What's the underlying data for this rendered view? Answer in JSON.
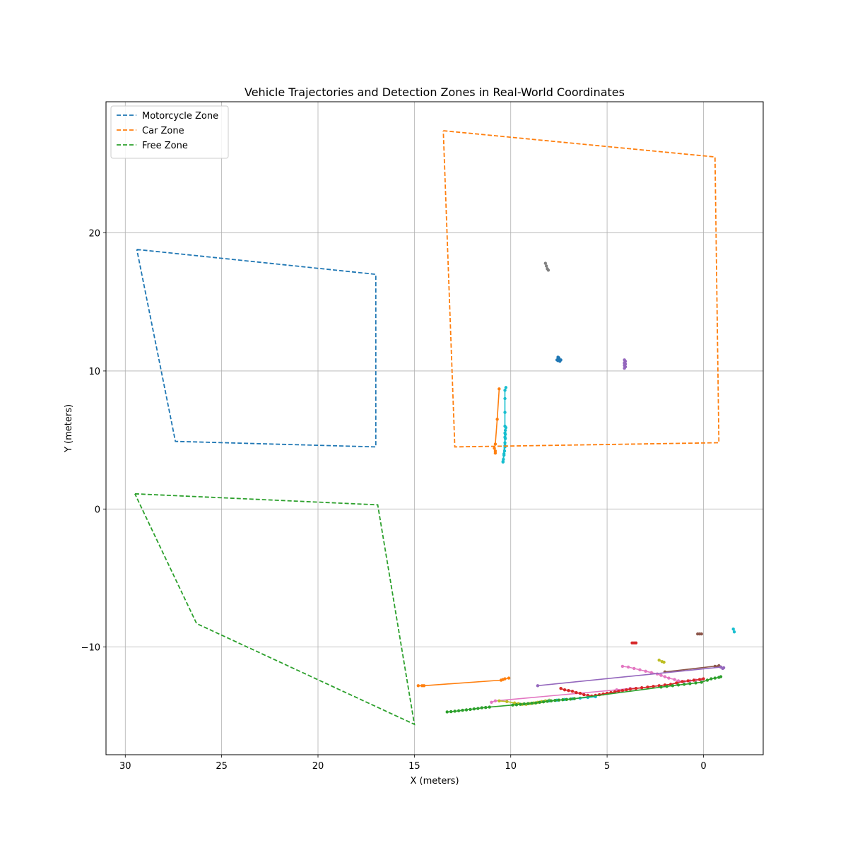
{
  "chart_data": {
    "type": "line",
    "title": "Vehicle Trajectories and Detection Zones in Real-World Coordinates",
    "xlabel": "X (meters)",
    "ylabel": "Y (meters)",
    "x_inverted": true,
    "xlim": [
      31,
      -3.1
    ],
    "ylim": [
      -17.8,
      29.5
    ],
    "xticks": [
      30,
      25,
      20,
      15,
      10,
      5,
      0
    ],
    "yticks": [
      20,
      10,
      0,
      -10
    ],
    "xtick_labels": [
      "30",
      "25",
      "20",
      "15",
      "10",
      "5",
      "0"
    ],
    "ytick_labels": [
      "20",
      "10",
      "0",
      "−10"
    ],
    "grid": true,
    "legend_position": "upper-left",
    "zones": [
      {
        "name": "Motorcycle Zone",
        "color": "#1f77b4",
        "style": "dashed",
        "points": [
          [
            29.4,
            18.8
          ],
          [
            17.0,
            17.0
          ],
          [
            17.0,
            4.5
          ],
          [
            27.4,
            4.9
          ],
          [
            29.4,
            18.8
          ]
        ]
      },
      {
        "name": "Car Zone",
        "color": "#ff7f0e",
        "style": "dashed",
        "points": [
          [
            13.5,
            27.4
          ],
          [
            -0.6,
            25.5
          ],
          [
            -0.8,
            4.8
          ],
          [
            12.9,
            4.5
          ],
          [
            13.5,
            27.4
          ]
        ]
      },
      {
        "name": "Free Zone",
        "color": "#2ca02c",
        "style": "dashed",
        "points": [
          [
            29.5,
            1.1
          ],
          [
            16.9,
            0.3
          ],
          [
            15.0,
            -15.6
          ],
          [
            26.3,
            -8.3
          ],
          [
            29.5,
            1.1
          ]
        ]
      }
    ],
    "trajectories": [
      {
        "color": "#7f7f7f",
        "points": [
          [
            8.2,
            17.8
          ],
          [
            8.15,
            17.6
          ],
          [
            8.1,
            17.4
          ],
          [
            8.05,
            17.3
          ]
        ]
      },
      {
        "color": "#1f77b4",
        "points": [
          [
            7.6,
            10.8
          ],
          [
            7.55,
            11.0
          ],
          [
            7.5,
            10.9
          ],
          [
            7.45,
            10.7
          ],
          [
            7.4,
            10.8
          ],
          [
            7.55,
            10.75
          ],
          [
            7.5,
            10.95
          ]
        ]
      },
      {
        "color": "#9467bd",
        "points": [
          [
            4.1,
            10.8
          ],
          [
            4.05,
            10.7
          ],
          [
            4.1,
            10.6
          ],
          [
            4.05,
            10.5
          ],
          [
            4.1,
            10.4
          ],
          [
            4.05,
            10.3
          ],
          [
            4.1,
            10.2
          ],
          [
            4.1,
            10.55
          ]
        ]
      },
      {
        "color": "#ff7f0e",
        "points": [
          [
            10.6,
            8.7
          ],
          [
            10.7,
            6.5
          ],
          [
            10.8,
            4.7
          ],
          [
            10.85,
            4.4
          ],
          [
            10.8,
            4.2
          ],
          [
            10.8,
            4.05
          ]
        ]
      },
      {
        "color": "#17becf",
        "points": [
          [
            10.25,
            8.8
          ],
          [
            10.3,
            8.6
          ],
          [
            10.3,
            8.0
          ],
          [
            10.3,
            7.0
          ],
          [
            10.3,
            6.0
          ],
          [
            10.28,
            5.7
          ],
          [
            10.28,
            5.4
          ],
          [
            10.28,
            5.1
          ],
          [
            10.3,
            4.8
          ],
          [
            10.3,
            4.5
          ],
          [
            10.32,
            4.2
          ],
          [
            10.35,
            3.9
          ],
          [
            10.38,
            3.6
          ],
          [
            10.4,
            3.4
          ],
          [
            10.25,
            5.9
          ],
          [
            10.3,
            5.5
          ],
          [
            10.3,
            5.2
          ],
          [
            10.3,
            4.6
          ],
          [
            10.35,
            4.0
          ],
          [
            10.4,
            3.45
          ]
        ]
      },
      {
        "color": "#ff7f0e",
        "points": [
          [
            14.8,
            -12.8
          ],
          [
            14.6,
            -12.8
          ],
          [
            14.5,
            -12.8
          ],
          [
            10.5,
            -12.4
          ],
          [
            10.4,
            -12.35
          ],
          [
            10.3,
            -12.3
          ],
          [
            10.1,
            -12.25
          ]
        ]
      },
      {
        "color": "#d62728",
        "points": [
          [
            3.7,
            -9.7
          ],
          [
            3.6,
            -9.7
          ],
          [
            3.5,
            -9.7
          ]
        ]
      },
      {
        "color": "#8c564b",
        "points": [
          [
            0.3,
            -9.05
          ],
          [
            0.2,
            -9.05
          ],
          [
            0.1,
            -9.05
          ]
        ]
      },
      {
        "color": "#17becf",
        "points": [
          [
            -1.55,
            -8.7
          ],
          [
            -1.6,
            -8.9
          ]
        ]
      },
      {
        "color": "#bcbd22",
        "points": [
          [
            2.3,
            -10.95
          ],
          [
            2.15,
            -11.05
          ],
          [
            2.05,
            -11.1
          ]
        ]
      },
      {
        "color": "#e377c2",
        "points": [
          [
            4.2,
            -11.4
          ],
          [
            3.9,
            -11.45
          ],
          [
            3.6,
            -11.55
          ],
          [
            3.3,
            -11.65
          ],
          [
            3.0,
            -11.75
          ],
          [
            2.7,
            -11.85
          ],
          [
            2.4,
            -11.95
          ],
          [
            2.2,
            -12.05
          ],
          [
            2.0,
            -12.15
          ],
          [
            1.8,
            -12.25
          ],
          [
            1.5,
            -12.35
          ],
          [
            1.3,
            -12.45
          ],
          [
            1.0,
            -12.5
          ],
          [
            0.7,
            -12.45
          ],
          [
            0.4,
            -12.4
          ],
          [
            0.1,
            -12.35
          ]
        ]
      },
      {
        "color": "#8c564b",
        "points": [
          [
            2.0,
            -11.8
          ],
          [
            -0.8,
            -11.35
          ],
          [
            -0.6,
            -11.4
          ],
          [
            -0.9,
            -11.45
          ]
        ]
      },
      {
        "color": "#9467bd",
        "points": [
          [
            8.6,
            -12.8
          ],
          [
            -0.9,
            -11.45
          ],
          [
            -1.0,
            -11.55
          ],
          [
            -1.05,
            -11.5
          ]
        ]
      },
      {
        "color": "#e377c2",
        "points": [
          [
            11.0,
            -14.0
          ],
          [
            10.8,
            -13.9
          ],
          [
            4.5,
            -13.1
          ],
          [
            3.8,
            -13.0
          ],
          [
            3.2,
            -12.95
          ]
        ]
      },
      {
        "color": "#d62728",
        "points": [
          [
            7.4,
            -13.0
          ],
          [
            7.2,
            -13.1
          ],
          [
            7.0,
            -13.15
          ],
          [
            6.8,
            -13.2
          ],
          [
            6.6,
            -13.3
          ],
          [
            6.4,
            -13.35
          ],
          [
            6.2,
            -13.45
          ],
          [
            6.0,
            -13.5
          ],
          [
            5.8,
            -13.55
          ],
          [
            5.6,
            -13.5
          ],
          [
            5.4,
            -13.45
          ],
          [
            5.2,
            -13.4
          ],
          [
            5.0,
            -13.35
          ],
          [
            4.8,
            -13.3
          ],
          [
            4.6,
            -13.25
          ],
          [
            4.4,
            -13.2
          ],
          [
            4.2,
            -13.15
          ],
          [
            4.0,
            -13.1
          ],
          [
            3.8,
            -13.05
          ],
          [
            3.5,
            -13.0
          ],
          [
            3.2,
            -12.95
          ],
          [
            2.9,
            -12.9
          ],
          [
            2.6,
            -12.85
          ],
          [
            2.3,
            -12.8
          ],
          [
            2.0,
            -12.75
          ],
          [
            1.7,
            -12.7
          ],
          [
            1.4,
            -12.6
          ],
          [
            1.1,
            -12.5
          ],
          [
            0.8,
            -12.45
          ],
          [
            0.5,
            -12.4
          ],
          [
            0.2,
            -12.35
          ],
          [
            0.0,
            -12.3
          ]
        ]
      },
      {
        "color": "#bcbd22",
        "points": [
          [
            10.6,
            -13.9
          ],
          [
            10.2,
            -13.95
          ],
          [
            9.8,
            -14.05
          ],
          [
            9.6,
            -14.1
          ],
          [
            9.4,
            -14.15
          ],
          [
            9.2,
            -14.15
          ],
          [
            9.0,
            -14.1
          ],
          [
            8.8,
            -14.05
          ],
          [
            8.6,
            -14.0
          ],
          [
            8.4,
            -13.95
          ],
          [
            8.2,
            -13.9
          ],
          [
            8.0,
            -13.85
          ]
        ]
      },
      {
        "color": "#17becf",
        "points": [
          [
            8.0,
            -13.9
          ],
          [
            7.6,
            -13.85
          ],
          [
            7.2,
            -13.8
          ],
          [
            6.8,
            -13.75
          ],
          [
            6.4,
            -13.7
          ],
          [
            6.0,
            -13.65
          ],
          [
            5.6,
            -13.6
          ]
        ]
      },
      {
        "color": "#2ca02c",
        "points": [
          [
            13.3,
            -14.7
          ],
          [
            13.1,
            -14.68
          ],
          [
            12.9,
            -14.65
          ],
          [
            12.7,
            -14.62
          ],
          [
            12.5,
            -14.58
          ],
          [
            12.3,
            -14.55
          ],
          [
            12.1,
            -14.52
          ],
          [
            11.9,
            -14.48
          ],
          [
            11.7,
            -14.45
          ],
          [
            11.5,
            -14.4
          ],
          [
            11.3,
            -14.38
          ],
          [
            11.1,
            -14.35
          ],
          [
            9.9,
            -14.2
          ],
          [
            9.7,
            -14.18
          ],
          [
            9.5,
            -14.15
          ],
          [
            9.3,
            -14.12
          ],
          [
            9.1,
            -14.1
          ],
          [
            8.9,
            -14.07
          ],
          [
            8.7,
            -14.05
          ],
          [
            8.5,
            -14.0
          ],
          [
            8.3,
            -13.97
          ],
          [
            8.1,
            -13.93
          ],
          [
            7.9,
            -13.9
          ],
          [
            7.7,
            -13.87
          ],
          [
            7.5,
            -13.84
          ],
          [
            7.3,
            -13.82
          ],
          [
            7.1,
            -13.8
          ],
          [
            6.9,
            -13.77
          ],
          [
            6.7,
            -13.74
          ],
          [
            2.2,
            -12.9
          ],
          [
            1.9,
            -12.85
          ],
          [
            1.6,
            -12.8
          ],
          [
            1.3,
            -12.75
          ],
          [
            1.0,
            -12.7
          ],
          [
            0.7,
            -12.65
          ],
          [
            0.4,
            -12.6
          ],
          [
            0.1,
            -12.55
          ],
          [
            -0.2,
            -12.4
          ],
          [
            -0.4,
            -12.3
          ],
          [
            -0.6,
            -12.25
          ],
          [
            -0.8,
            -12.2
          ],
          [
            -0.9,
            -12.15
          ]
        ]
      }
    ]
  }
}
